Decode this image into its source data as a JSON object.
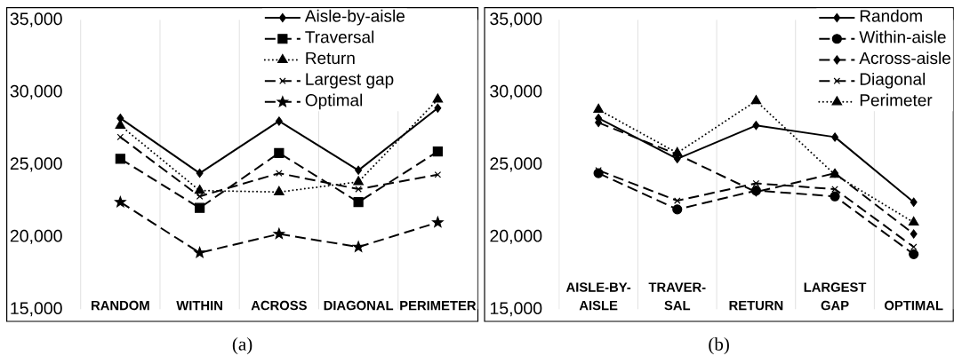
{
  "chart_data": [
    {
      "type": "line",
      "categories": [
        "RANDOM",
        "WITHIN",
        "ACROSS",
        "DIAGONAL",
        "PERIMETER"
      ],
      "ylim": [
        15000,
        35000
      ],
      "yticks": [
        {
          "value": 15000,
          "label": "15,000"
        },
        {
          "value": 20000,
          "label": "20,000"
        },
        {
          "value": 25000,
          "label": "25,000"
        },
        {
          "value": 30000,
          "label": "30,000"
        },
        {
          "value": 35000,
          "label": "35,000"
        }
      ],
      "grid": "x",
      "legend": "top",
      "annotations": [
        "(a)"
      ],
      "series": [
        {
          "name": "Aisle-by-aisle",
          "color": "#000000",
          "marker": "diamond",
          "line_style": "solid",
          "values": [
            28200,
            24400,
            28000,
            24600,
            28900
          ]
        },
        {
          "name": "Traversal",
          "color": "#000000",
          "marker": "square",
          "line_style": "dashed",
          "values": [
            25400,
            22000,
            25800,
            22400,
            25900
          ]
        },
        {
          "name": "Return",
          "color": "#000000",
          "marker": "triangle",
          "line_style": "dotted",
          "values": [
            27700,
            23200,
            23100,
            23800,
            29500
          ]
        },
        {
          "name": "Largest gap",
          "color": "#000000",
          "marker": "cross",
          "line_style": "dashed",
          "values": [
            26900,
            22800,
            24400,
            23300,
            24300
          ]
        },
        {
          "name": "Optimal",
          "color": "#000000",
          "marker": "star",
          "line_style": "dashed",
          "values": [
            22400,
            18900,
            20200,
            19300,
            21000
          ]
        }
      ]
    },
    {
      "type": "line",
      "categories": [
        "AISLE-BY-AISLE",
        "TRAVER-SAL",
        "RETURN",
        "LARGEST GAP",
        "OPTIMAL"
      ],
      "ylim": [
        15000,
        35000
      ],
      "yticks": [
        {
          "value": 15000,
          "label": "15,000"
        },
        {
          "value": 20000,
          "label": "20,000"
        },
        {
          "value": 25000,
          "label": "25,000"
        },
        {
          "value": 30000,
          "label": "30,000"
        },
        {
          "value": 35000,
          "label": "35,000"
        }
      ],
      "grid": "x",
      "legend": "top right",
      "annotations": [
        "(b)"
      ],
      "series": [
        {
          "name": "Random",
          "color": "#000000",
          "marker": "diamond",
          "line_style": "solid",
          "values": [
            28200,
            25400,
            27700,
            26900,
            22400
          ]
        },
        {
          "name": "Within-aisle",
          "color": "#000000",
          "marker": "circle",
          "line_style": "dashed",
          "values": [
            24400,
            21900,
            23200,
            22800,
            18800
          ]
        },
        {
          "name": "Across-aisle",
          "color": "#000000",
          "marker": "diamond",
          "line_style": "dashed",
          "values": [
            27900,
            25700,
            23100,
            24400,
            20200
          ]
        },
        {
          "name": "Diagonal",
          "color": "#000000",
          "marker": "cross",
          "line_style": "dashed",
          "values": [
            24600,
            22500,
            23700,
            23300,
            19300
          ]
        },
        {
          "name": "Perimeter",
          "color": "#000000",
          "marker": "triangle",
          "line_style": "dotted",
          "values": [
            28800,
            25800,
            29400,
            24300,
            21000
          ]
        }
      ]
    }
  ]
}
